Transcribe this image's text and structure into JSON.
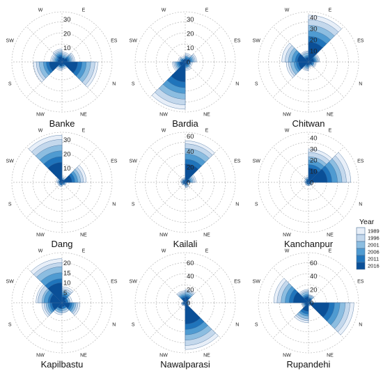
{
  "directions": [
    "E",
    "ES",
    "N",
    "NE",
    "NW",
    "S",
    "SW",
    "W"
  ],
  "legend": {
    "title": "Year",
    "items": [
      {
        "year": "1989",
        "color": "#e8eff8"
      },
      {
        "year": "1996",
        "color": "#c4d8ec"
      },
      {
        "year": "2001",
        "color": "#8cbde0"
      },
      {
        "year": "2006",
        "color": "#4f9bd1"
      },
      {
        "year": "2011",
        "color": "#1f74bb"
      },
      {
        "year": "2016",
        "color": "#0a4f97"
      }
    ]
  },
  "chart_data": [
    {
      "type": "polar-bar",
      "title": "Banke",
      "rmax": 35,
      "ticks": [
        10,
        20,
        30
      ],
      "categories": [
        "E",
        "ES",
        "N",
        "NE",
        "NW",
        "S",
        "SW",
        "W"
      ],
      "years": [
        "1989",
        "1996",
        "2001",
        "2006",
        "2011",
        "2016"
      ],
      "values": {
        "1989": [
          7,
          9,
          25,
          5,
          6,
          20,
          8,
          9
        ],
        "1996": [
          6,
          8,
          23,
          4,
          5,
          18,
          7,
          8
        ],
        "2001": [
          5,
          7,
          20,
          4,
          4,
          16,
          6,
          7
        ],
        "2006": [
          4,
          6,
          17,
          3,
          4,
          13,
          5,
          6
        ],
        "2011": [
          3,
          5,
          14,
          3,
          3,
          11,
          4,
          5
        ],
        "2016": [
          3,
          4,
          11,
          2,
          3,
          9,
          3,
          4
        ]
      }
    },
    {
      "type": "polar-bar",
      "title": "Bardia",
      "rmax": 35,
      "ticks": [
        0,
        10,
        20,
        30
      ],
      "categories": [
        "E",
        "ES",
        "N",
        "NE",
        "NW",
        "S",
        "SW",
        "W"
      ],
      "years": [
        "1989",
        "1996",
        "2001",
        "2006",
        "2011",
        "2016"
      ],
      "values": {
        "1989": [
          6,
          8,
          5,
          6,
          33,
          9,
          5,
          4
        ],
        "1996": [
          5,
          7,
          4,
          5,
          30,
          8,
          4,
          3
        ],
        "2001": [
          4,
          6,
          4,
          4,
          26,
          7,
          4,
          3
        ],
        "2006": [
          4,
          5,
          3,
          4,
          22,
          6,
          3,
          2
        ],
        "2011": [
          3,
          4,
          3,
          3,
          18,
          5,
          3,
          2
        ],
        "2016": [
          2,
          3,
          2,
          2,
          14,
          4,
          2,
          2
        ]
      }
    },
    {
      "type": "polar-bar",
      "title": "Chitwan",
      "rmax": 45,
      "ticks": [
        10,
        20,
        30,
        40
      ],
      "categories": [
        "E",
        "ES",
        "N",
        "NE",
        "NW",
        "S",
        "SW",
        "W"
      ],
      "years": [
        "1989",
        "1996",
        "2001",
        "2006",
        "2011",
        "2016"
      ],
      "values": {
        "1989": [
          42,
          10,
          7,
          5,
          8,
          20,
          24,
          10
        ],
        "1996": [
          38,
          9,
          6,
          4,
          7,
          18,
          21,
          9
        ],
        "2001": [
          33,
          8,
          5,
          4,
          6,
          16,
          18,
          8
        ],
        "2006": [
          28,
          7,
          5,
          3,
          5,
          13,
          15,
          6
        ],
        "2011": [
          23,
          6,
          4,
          3,
          4,
          11,
          12,
          5
        ],
        "2016": [
          18,
          5,
          3,
          2,
          3,
          9,
          10,
          4
        ]
      }
    },
    {
      "type": "polar-bar",
      "title": "Dang",
      "rmax": 35,
      "ticks": [
        10,
        20,
        30
      ],
      "categories": [
        "E",
        "ES",
        "N",
        "NE",
        "NW",
        "S",
        "SW",
        "W"
      ],
      "years": [
        "1989",
        "1996",
        "2001",
        "2006",
        "2011",
        "2016"
      ],
      "values": {
        "1989": [
          4,
          17,
          3,
          2,
          3,
          3,
          4,
          33
        ],
        "1996": [
          3,
          15,
          3,
          2,
          3,
          3,
          3,
          30
        ],
        "2001": [
          3,
          13,
          2,
          2,
          2,
          2,
          3,
          26
        ],
        "2006": [
          2,
          11,
          2,
          1,
          2,
          2,
          2,
          22
        ],
        "2011": [
          2,
          9,
          2,
          1,
          2,
          2,
          2,
          18
        ],
        "2016": [
          2,
          7,
          1,
          1,
          1,
          1,
          2,
          14
        ]
      }
    },
    {
      "type": "polar-bar",
      "title": "Kailali",
      "rmax": 65,
      "ticks": [
        0,
        20,
        40,
        60
      ],
      "categories": [
        "E",
        "ES",
        "N",
        "NE",
        "NW",
        "S",
        "SW",
        "W"
      ],
      "years": [
        "1989",
        "1996",
        "2001",
        "2006",
        "2011",
        "2016"
      ],
      "values": {
        "1989": [
          54,
          14,
          4,
          7,
          4,
          5,
          6,
          6
        ],
        "1996": [
          50,
          12,
          3,
          6,
          3,
          4,
          5,
          5
        ],
        "2001": [
          44,
          10,
          3,
          5,
          3,
          4,
          4,
          4
        ],
        "2006": [
          37,
          8,
          3,
          4,
          2,
          3,
          4,
          4
        ],
        "2011": [
          30,
          6,
          2,
          3,
          2,
          3,
          3,
          3
        ],
        "2016": [
          24,
          5,
          2,
          3,
          2,
          2,
          2,
          2
        ]
      }
    },
    {
      "type": "polar-bar",
      "title": "Kanchanpur",
      "rmax": 45,
      "ticks": [
        0,
        10,
        20,
        30,
        40
      ],
      "categories": [
        "E",
        "ES",
        "N",
        "NE",
        "NW",
        "S",
        "SW",
        "W"
      ],
      "years": [
        "1989",
        "1996",
        "2001",
        "2006",
        "2011",
        "2016"
      ],
      "values": {
        "1989": [
          30,
          38,
          4,
          3,
          3,
          3,
          4,
          5
        ],
        "1996": [
          27,
          34,
          3,
          3,
          3,
          3,
          3,
          4
        ],
        "2001": [
          23,
          30,
          3,
          2,
          2,
          2,
          3,
          4
        ],
        "2006": [
          20,
          26,
          2,
          2,
          2,
          2,
          2,
          3
        ],
        "2011": [
          16,
          21,
          2,
          2,
          2,
          2,
          2,
          3
        ],
        "2016": [
          13,
          17,
          2,
          1,
          1,
          1,
          2,
          2
        ]
      }
    },
    {
      "type": "polar-bar",
      "title": "Kapilbastu",
      "rmax": 25,
      "ticks": [
        5,
        10,
        15,
        20
      ],
      "categories": [
        "E",
        "ES",
        "N",
        "NE",
        "NW",
        "S",
        "SW",
        "W"
      ],
      "years": [
        "1989",
        "1996",
        "2001",
        "2006",
        "2011",
        "2016"
      ],
      "values": {
        "1989": [
          8,
          5,
          9,
          5,
          6,
          10,
          13,
          22
        ],
        "1996": [
          7,
          4,
          8,
          5,
          5,
          9,
          12,
          20
        ],
        "2001": [
          6,
          4,
          7,
          4,
          5,
          8,
          10,
          18
        ],
        "2006": [
          5,
          3,
          6,
          3,
          4,
          7,
          9,
          15
        ],
        "2011": [
          4,
          3,
          5,
          3,
          3,
          6,
          7,
          12
        ],
        "2016": [
          3,
          2,
          4,
          2,
          3,
          5,
          6,
          10
        ]
      }
    },
    {
      "type": "polar-bar",
      "title": "Nawalparasi",
      "rmax": 75,
      "ticks": [
        0,
        20,
        40,
        60
      ],
      "categories": [
        "E",
        "ES",
        "N",
        "NE",
        "NW",
        "S",
        "SW",
        "W"
      ],
      "years": [
        "1989",
        "1996",
        "2001",
        "2006",
        "2011",
        "2016"
      ],
      "values": {
        "1989": [
          20,
          6,
          6,
          70,
          5,
          6,
          4,
          18
        ],
        "1996": [
          18,
          5,
          5,
          64,
          4,
          5,
          4,
          16
        ],
        "2001": [
          16,
          5,
          5,
          56,
          4,
          5,
          3,
          14
        ],
        "2006": [
          13,
          4,
          4,
          48,
          3,
          4,
          3,
          12
        ],
        "2011": [
          11,
          3,
          3,
          40,
          3,
          3,
          2,
          10
        ],
        "2016": [
          9,
          3,
          3,
          32,
          2,
          3,
          2,
          8
        ]
      }
    },
    {
      "type": "polar-bar",
      "title": "Rupandehi",
      "rmax": 75,
      "ticks": [
        0,
        20,
        40,
        60
      ],
      "categories": [
        "E",
        "ES",
        "N",
        "NE",
        "NW",
        "S",
        "SW",
        "W"
      ],
      "years": [
        "1989",
        "1996",
        "2001",
        "2006",
        "2011",
        "2016"
      ],
      "values": {
        "1989": [
          12,
          6,
          68,
          5,
          30,
          10,
          52,
          20
        ],
        "1996": [
          11,
          5,
          62,
          4,
          27,
          9,
          47,
          18
        ],
        "2001": [
          10,
          5,
          55,
          4,
          24,
          8,
          41,
          16
        ],
        "2006": [
          8,
          4,
          47,
          3,
          20,
          7,
          35,
          13
        ],
        "2011": [
          7,
          3,
          39,
          3,
          17,
          6,
          29,
          11
        ],
        "2016": [
          6,
          3,
          31,
          2,
          13,
          5,
          23,
          9
        ]
      }
    }
  ]
}
